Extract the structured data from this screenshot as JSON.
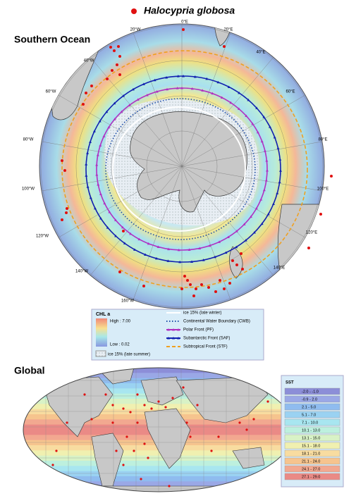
{
  "title": "Halocypria globosa",
  "polar_map": {
    "title": "Southern Ocean",
    "longitude_labels": [
      "0°E",
      "20°W",
      "20°E",
      "40°W",
      "40°E",
      "60°W",
      "60°E",
      "80°W",
      "80°E",
      "100°W",
      "100°E",
      "120°W",
      "120°E",
      "140°W",
      "140°E",
      "160°W"
    ]
  },
  "polar_legend": {
    "chl_title": "CHL a",
    "chl_high": "High : 7.00",
    "chl_low": "Low : 0.02",
    "ice_summer": "ice 15% (late summer)",
    "lines": [
      {
        "label": "ice 15% (late winter)",
        "color": "#ffffff",
        "style": "solid"
      },
      {
        "label": "Continental Water Boundary (CWB)",
        "color": "#1f4fa8",
        "style": "dotted"
      },
      {
        "label": "Polar Front (PF)",
        "color": "#b030c0",
        "style": "triangles"
      },
      {
        "label": "Subantarctic Front (SAF)",
        "color": "#1020b0",
        "style": "triangles"
      },
      {
        "label": "Subtropical Front (STF)",
        "color": "#f0a020",
        "style": "dashed"
      }
    ]
  },
  "global_map": {
    "title": "Global"
  },
  "sst_legend": {
    "title": "SST",
    "items": [
      {
        "label": "-2.0 - -1.0",
        "color": "#8c8ed8"
      },
      {
        "label": "-0.9 - 2.0",
        "color": "#9aa8e6"
      },
      {
        "label": "2.1 - 5.0",
        "color": "#8fbcef"
      },
      {
        "label": "5.1 - 7.0",
        "color": "#9ad2f2"
      },
      {
        "label": "7.1 - 10.0",
        "color": "#a8e6f0"
      },
      {
        "label": "10.1 - 13.0",
        "color": "#bdf0de"
      },
      {
        "label": "13.1 - 15.0",
        "color": "#d8f2c6"
      },
      {
        "label": "15.1 - 18.0",
        "color": "#f0f0b0"
      },
      {
        "label": "18.1 - 21.0",
        "color": "#f8dca0"
      },
      {
        "label": "21.1 - 24.0",
        "color": "#f6c48e"
      },
      {
        "label": "24.1 - 27.0",
        "color": "#f2a890"
      },
      {
        "label": "27.1 - 29.0",
        "color": "#ea8a86"
      }
    ]
  }
}
